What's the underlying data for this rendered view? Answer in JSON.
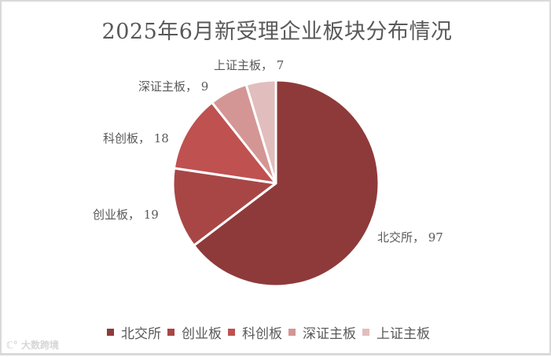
{
  "chart_title": "2025年6月新受理企业板块分布情况",
  "labels": [
    {
      "text": "北交所， 97"
    },
    {
      "text": "创业板， 19"
    },
    {
      "text": "科创板， 18"
    },
    {
      "text": "深证主板， 9"
    },
    {
      "text": "上证主板， 7"
    }
  ],
  "legend": [
    {
      "label": "北交所",
      "color": "#8f3a3a"
    },
    {
      "label": "创业板",
      "color": "#a84646"
    },
    {
      "label": "科创板",
      "color": "#bf5150"
    },
    {
      "label": "深证主板",
      "color": "#d49694"
    },
    {
      "label": "上证主板",
      "color": "#e2bdbd"
    }
  ],
  "watermark": "大数跨境",
  "chart_data": {
    "type": "pie",
    "title": "2025年6月新受理企业板块分布情况",
    "categories": [
      "北交所",
      "创业板",
      "科创板",
      "深证主板",
      "上证主板"
    ],
    "values": [
      97,
      19,
      18,
      9,
      7
    ],
    "colors": [
      "#8f3a3a",
      "#a84646",
      "#bf5150",
      "#d49694",
      "#e2bdbd"
    ],
    "data_labels": [
      "北交所， 97",
      "创业板， 19",
      "科创板， 18",
      "深证主板， 9",
      "上证主板， 7"
    ],
    "legend_position": "bottom",
    "start_angle": 0,
    "direction": "clockwise"
  }
}
